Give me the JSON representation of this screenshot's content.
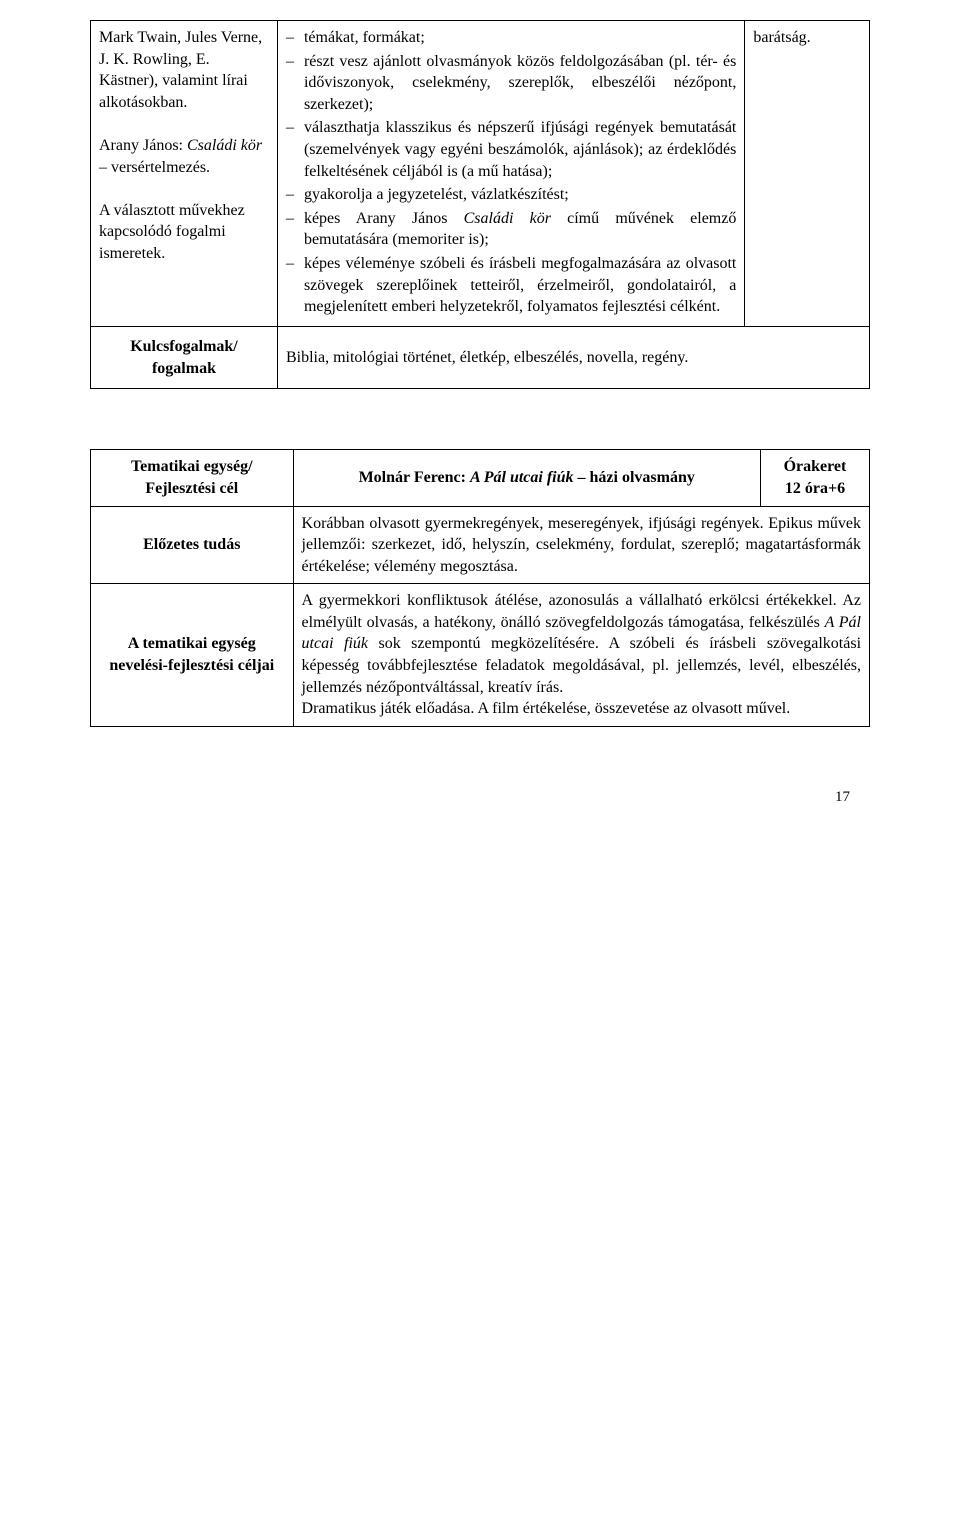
{
  "table1": {
    "left_cell_html": "Mark Twain, Jules Verne, J. K. Rowling, E. Kästner), valamint lírai alkotásokban.<br><br>Arany János: <span class=\"italic\">Családi kör</span> – versértelmezés.<br><br>A választott művekhez kapcsolódó fogalmi ismeretek.",
    "middle_items": [
      "témákat, formákat;",
      "részt vesz ajánlott olvasmányok közös feldolgozásában (pl. tér- és időviszonyok, cselekmény, szereplők, elbeszélői nézőpont, szerkezet);",
      "választhatja klasszikus és népszerű ifjúsági regények bemutatását (szemelvények vagy egyéni beszámolók, ajánlások); az érdeklődés felkeltésének céljából is (a mű hatása);",
      "gyakorolja a jegyzetelést, vázlatkészítést;",
      "képes Arany János <span class=\"italic\">Családi kör</span> című művének elemző bemutatására (memoriter is);",
      "képes véleménye szóbeli és írásbeli megfogalmazására az olvasott szövegek szereplőinek tetteiről, érzelmeiről, gondolatairól, a megjelenített emberi helyzetekről, folyamatos fejlesztési célként."
    ],
    "right_cell": "barátság.",
    "key_label": "Kulcsfogalmak/ fogalmak",
    "key_content": "Biblia, mitológiai történet, életkép, elbeszélés, novella, regény."
  },
  "table2": {
    "r1_c1": "Tematikai egység/ Fejlesztési cél",
    "r1_c2_html": "Molnár Ferenc: <span class=\"italic\">A Pál utcai fiúk</span> – házi olvasmány",
    "r1_c3_l1": "Órakeret",
    "r1_c3_l2": "12 óra+6",
    "r2_c1": "Előzetes tudás",
    "r2_c2": "Korábban olvasott gyermekregények, meseregények, ifjúsági regények. Epikus művek jellemzői: szerkezet, idő, helyszín, cselekmény, fordulat, szereplő; magatartásformák értékelése; vélemény megosztása.",
    "r3_c1": "A tematikai egység nevelési-fejlesztési céljai",
    "r3_c2_html": "A gyermekkori konfliktusok átélése, azonosulás a vállalható erkölcsi értékekkel. Az elmélyült olvasás, a hatékony, önálló szövegfeldolgozás támogatása, felkészülés <span class=\"italic\">A Pál utcai fiúk</span> sok szempontú megközelítésére. A szóbeli és írásbeli szövegalkotási képesség továbbfejlesztése feladatok megoldásával, pl. jellemzés, levél, elbeszélés, jellemzés nézőpontváltással, kreatív írás.<br>Dramatikus játék előadása. A film értékelése, összevetése az olvasott művel."
  },
  "page_number": "17"
}
